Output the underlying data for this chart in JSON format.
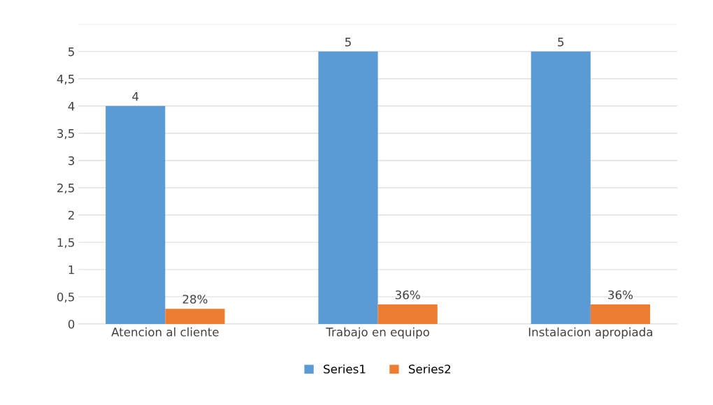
{
  "chart_data": {
    "type": "bar",
    "categories": [
      "Atencion al cliente",
      "Trabajo en equipo",
      "Instalacion apropiada"
    ],
    "series": [
      {
        "name": "Series1",
        "color": "#5b9bd5",
        "values": [
          4,
          5,
          5
        ],
        "value_labels": [
          "4",
          "5",
          "5"
        ]
      },
      {
        "name": "Series2",
        "color": "#ed7d31",
        "values": [
          0.28,
          0.36,
          0.36
        ],
        "value_labels": [
          "28%",
          "36%",
          "36%"
        ]
      }
    ],
    "ylim": [
      0,
      5.5
    ],
    "yticks": [
      0,
      {
        "value": 0.5,
        "label": "0,5"
      },
      1,
      {
        "value": 1.5,
        "label": "1,5"
      },
      2,
      {
        "value": 2.5,
        "label": "2,5"
      },
      3,
      {
        "value": 3.5,
        "label": "3,5"
      },
      4,
      {
        "value": 4.5,
        "label": "4,5"
      },
      5,
      {
        "value": 5.5,
        "label": null
      }
    ],
    "grid": "y",
    "legend": "bottom"
  }
}
